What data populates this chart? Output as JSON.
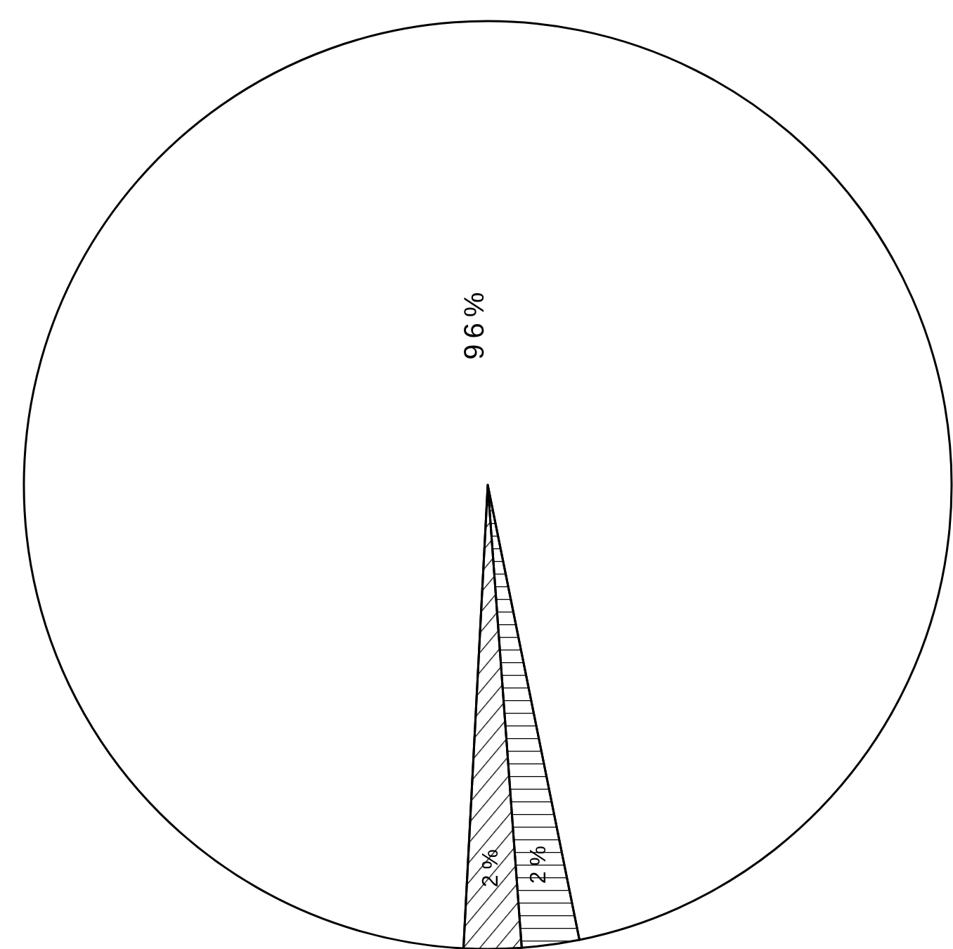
{
  "chart_data": {
    "type": "pie",
    "categories": [
      null,
      null,
      null
    ],
    "values": [
      96,
      2,
      2
    ],
    "colors": [
      "#ffffff",
      "#000000",
      "#000000"
    ],
    "data_labels": true,
    "value_labels": [
      "96%",
      "2%",
      "2%"
    ]
  }
}
